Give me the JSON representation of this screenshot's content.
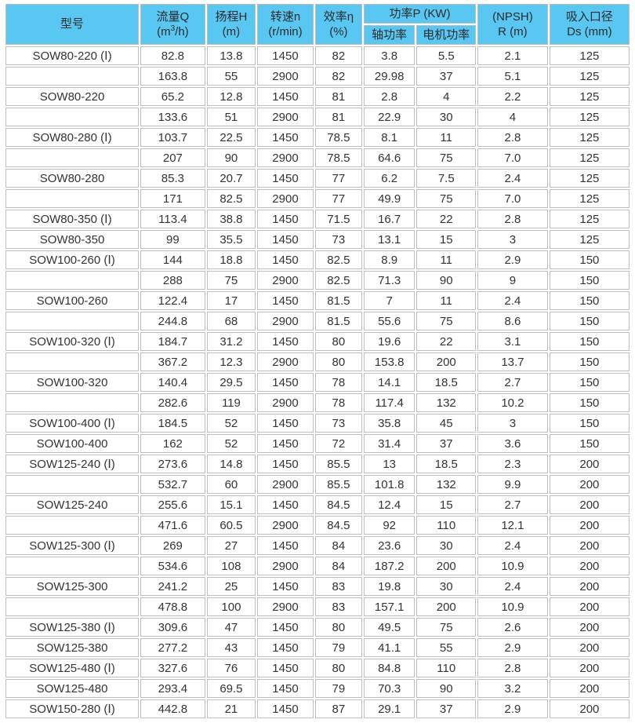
{
  "colors": {
    "header_bg": "#58C8F2",
    "border": "#BDBDBD",
    "header_text": "#2A2A2A",
    "cell_text": "#333333",
    "page_bg": "#FFFFFF"
  },
  "table": {
    "col_keys": [
      "model",
      "flow",
      "head",
      "speed",
      "efficiency",
      "shaft-power",
      "motor-power",
      "npsh",
      "suction-diameter"
    ],
    "header": {
      "model": "型号",
      "flow": {
        "title": "流量Q",
        "unit_pre": "(m",
        "unit_sup": "3",
        "unit_post": "/h)"
      },
      "head": {
        "title": "扬程H",
        "unit": "(m)"
      },
      "speed": {
        "title": "转速n",
        "unit": "(r/min)"
      },
      "efficiency": {
        "title": "效率η",
        "unit": "(%)"
      },
      "power_group": "功率P (KW)",
      "shaft_power": "轴功率",
      "motor_power": "电机功率",
      "npsh": {
        "title": "(NPSH)",
        "unit": "R (m)"
      },
      "suction": {
        "title": "吸入口径",
        "unit": "Ds (mm)"
      }
    },
    "rows": [
      [
        "SOW80-220 (Ⅰ)",
        "82.8",
        "13.8",
        "1450",
        "82",
        "3.8",
        "5.5",
        "2.1",
        "125"
      ],
      [
        "",
        "163.8",
        "55",
        "2900",
        "82",
        "29.98",
        "37",
        "5.1",
        "125"
      ],
      [
        "SOW80-220",
        "65.2",
        "12.8",
        "1450",
        "81",
        "2.8",
        "4",
        "2.2",
        "125"
      ],
      [
        "",
        "133.6",
        "51",
        "2900",
        "81",
        "22.9",
        "30",
        "4",
        "125"
      ],
      [
        "SOW80-280 (Ⅰ)",
        "103.7",
        "22.5",
        "1450",
        "78.5",
        "8.1",
        "11",
        "2.8",
        "125"
      ],
      [
        "",
        "207",
        "90",
        "2900",
        "78.5",
        "64.6",
        "75",
        "7.0",
        "125"
      ],
      [
        "SOW80-280",
        "85.3",
        "20.7",
        "1450",
        "77",
        "6.2",
        "7.5",
        "2.4",
        "125"
      ],
      [
        "",
        "171",
        "82.5",
        "2900",
        "77",
        "49.9",
        "75",
        "7.0",
        "125"
      ],
      [
        "SOW80-350 (Ⅰ)",
        "113.4",
        "38.8",
        "1450",
        "71.5",
        "16.7",
        "22",
        "2.8",
        "125"
      ],
      [
        "SOW80-350",
        "99",
        "35.5",
        "1450",
        "73",
        "13.1",
        "15",
        "3",
        "125"
      ],
      [
        "SOW100-260 (Ⅰ)",
        "144",
        "18.8",
        "1450",
        "82.5",
        "8.9",
        "11",
        "2.9",
        "150"
      ],
      [
        "",
        "288",
        "75",
        "2900",
        "82.5",
        "71.3",
        "90",
        "9",
        "150"
      ],
      [
        "SOW100-260",
        "122.4",
        "17",
        "1450",
        "81.5",
        "7",
        "11",
        "2.4",
        "150"
      ],
      [
        "",
        "244.8",
        "68",
        "2900",
        "81.5",
        "55.6",
        "75",
        "8.6",
        "150"
      ],
      [
        "SOW100-320 (Ⅰ)",
        "184.7",
        "31.2",
        "1450",
        "80",
        "19.6",
        "22",
        "3.1",
        "150"
      ],
      [
        "",
        "367.2",
        "12.3",
        "2900",
        "80",
        "153.8",
        "200",
        "13.7",
        "150"
      ],
      [
        "SOW100-320",
        "140.4",
        "29.5",
        "1450",
        "78",
        "14.1",
        "18.5",
        "2.7",
        "150"
      ],
      [
        "",
        "282.6",
        "119",
        "2900",
        "78",
        "117.4",
        "132",
        "10.2",
        "150"
      ],
      [
        "SOW100-400 (Ⅰ)",
        "184.5",
        "52",
        "1450",
        "73",
        "35.8",
        "45",
        "3",
        "150"
      ],
      [
        "SOW100-400",
        "162",
        "52",
        "1450",
        "72",
        "31.4",
        "37",
        "3.6",
        "150"
      ],
      [
        "SOW125-240 (Ⅰ)",
        "273.6",
        "14.8",
        "1450",
        "85.5",
        "13",
        "18.5",
        "2.3",
        "200"
      ],
      [
        "",
        "532.7",
        "60",
        "2900",
        "85.5",
        "101.8",
        "132",
        "9.9",
        "200"
      ],
      [
        "SOW125-240",
        "255.6",
        "15.1",
        "1450",
        "84.5",
        "12.4",
        "15",
        "2.7",
        "200"
      ],
      [
        "",
        "471.6",
        "60.5",
        "2900",
        "84.5",
        "92",
        "110",
        "12.1",
        "200"
      ],
      [
        "SOW125-300 (Ⅰ)",
        "269",
        "27",
        "1450",
        "84",
        "23.6",
        "30",
        "2.4",
        "200"
      ],
      [
        "",
        "534.6",
        "108",
        "2900",
        "84",
        "187.2",
        "200",
        "10.9",
        "200"
      ],
      [
        "SOW125-300",
        "241.2",
        "25",
        "1450",
        "83",
        "19.8",
        "30",
        "2.4",
        "200"
      ],
      [
        "",
        "478.8",
        "100",
        "2900",
        "83",
        "157.1",
        "200",
        "10.9",
        "200"
      ],
      [
        "SOW125-380 (Ⅰ)",
        "309.6",
        "47",
        "1450",
        "80",
        "49.5",
        "75",
        "2.6",
        "200"
      ],
      [
        "SOW125-380",
        "277.2",
        "43",
        "1450",
        "79",
        "41.1",
        "55",
        "2.9",
        "200"
      ],
      [
        "SOW125-480 (Ⅰ)",
        "327.6",
        "76",
        "1450",
        "80",
        "84.8",
        "110",
        "2.8",
        "200"
      ],
      [
        "SOW125-480",
        "293.4",
        "69.5",
        "1450",
        "79",
        "70.3",
        "90",
        "3.2",
        "200"
      ],
      [
        "SOW150-280 (Ⅰ)",
        "442.8",
        "21",
        "1450",
        "87",
        "29.1",
        "37",
        "2.9",
        "200"
      ]
    ]
  }
}
